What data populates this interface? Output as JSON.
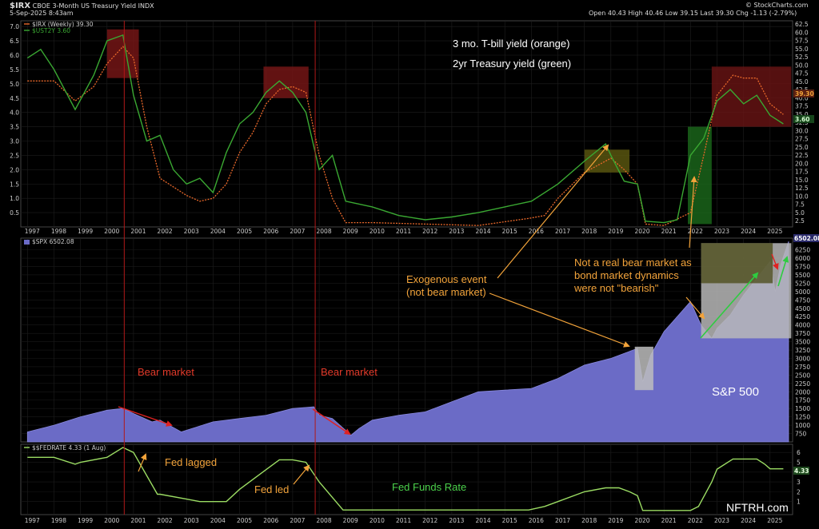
{
  "header": {
    "symbol": "$IRX",
    "name": "CBOE 3-Month US Treasury Yield",
    "exchange": "INDX",
    "date": "5-Sep-2025 8:43am",
    "quote": "Open 40.43  High 40.46  Low 39.15  Last 39.30  Chg -1.13 (-2.79%)",
    "credit": "© StockCharts.com"
  },
  "annotations": {
    "tbill": "3 mo. T-bill yield (orange)",
    "two_year": "2yr Treasury yield (green)",
    "exogenous": "Exogenous event\n(not bear market)",
    "not_real": "Not a real bear market as\nbond market dynamics\nwere not \"bearish\"",
    "bear1": "Bear market",
    "bear2": "Bear market",
    "sp500": "S&P 500",
    "fed_lagged": "Fed lagged",
    "fed_led": "Fed led",
    "fed_funds": "Fed Funds Rate",
    "site": "NFTRH.com"
  },
  "colors": {
    "tbill": "#e8682a",
    "two_year": "#3aa832",
    "spx_fill": "#6b6bc6",
    "fed": "#9bdc63",
    "bear_arrow": "#e02222",
    "bull_arrow": "#2ecc40",
    "orange_arrow": "#f2a33a",
    "marker_line": "#b01818"
  },
  "chart_data": [
    {
      "type": "line",
      "title": "$IRX CBOE 3-Month US Treasury Yield",
      "legend": [
        "$IRX (Weekly) 39.30",
        "$UST2Y 3.60"
      ],
      "left_ticks": [
        "7.0",
        "6.5",
        "6.0",
        "5.5",
        "5.0",
        "4.5",
        "4.0",
        "3.5",
        "3.0",
        "2.5",
        "2.0",
        "1.5",
        "1.0",
        "0.5"
      ],
      "right_ticks": [
        "62.5",
        "60.0",
        "57.5",
        "55.0",
        "52.5",
        "50.0",
        "47.5",
        "45.0",
        "42.5",
        "40.0",
        "37.5",
        "35.0",
        "32.5",
        "30.0",
        "27.5",
        "25.0",
        "22.5",
        "20.0",
        "17.5",
        "15.0",
        "12.5",
        "10.0",
        "7.5",
        "5.0",
        "2.5"
      ],
      "last_labels": [
        "39.30",
        "3.60"
      ],
      "ylim": [
        0,
        7.2
      ],
      "series": [
        {
          "name": "$IRX (Weekly)",
          "x": [
            1997,
            1998,
            1998.8,
            1999.5,
            2000,
            2000.6,
            2001,
            2001.5,
            2002,
            2003,
            2003.5,
            2004,
            2004.5,
            2005,
            2005.5,
            2006,
            2006.5,
            2007,
            2007.5,
            2008,
            2008.5,
            2009,
            2010,
            2012,
            2014,
            2015.9,
            2016.5,
            2017,
            2018,
            2019,
            2019.5,
            2020,
            2020.3,
            2021,
            2022,
            2022.5,
            2023,
            2023.6,
            2024,
            2024.5,
            2025,
            2025.5
          ],
          "values": [
            5.1,
            5.1,
            4.4,
            4.9,
            5.7,
            6.3,
            5.9,
            3.5,
            1.7,
            1.1,
            0.9,
            1.0,
            1.5,
            2.6,
            3.3,
            4.3,
            4.8,
            4.9,
            4.7,
            2.5,
            1.0,
            0.15,
            0.15,
            0.1,
            0.05,
            0.3,
            0.4,
            1.0,
            1.9,
            2.4,
            2.0,
            1.5,
            0.1,
            0.05,
            0.5,
            2.5,
            4.6,
            5.3,
            5.2,
            5.2,
            4.3,
            3.93
          ]
        },
        {
          "name": "$UST2Y",
          "x": [
            1997,
            1997.5,
            1998,
            1998.8,
            1999.5,
            2000,
            2000.6,
            2001,
            2001.5,
            2002,
            2002.5,
            2003,
            2003.5,
            2004,
            2004.5,
            2005,
            2005.5,
            2006,
            2006.5,
            2007,
            2007.5,
            2008,
            2008.5,
            2009,
            2010,
            2011,
            2012,
            2013,
            2014,
            2015,
            2016,
            2017,
            2018,
            2018.8,
            2019,
            2019.5,
            2020,
            2020.3,
            2021,
            2021.5,
            2022,
            2022.5,
            2023,
            2023.5,
            2024,
            2024.5,
            2025,
            2025.5
          ],
          "values": [
            5.9,
            6.2,
            5.5,
            4.1,
            5.3,
            6.5,
            6.7,
            4.6,
            3.0,
            3.2,
            2.0,
            1.5,
            1.7,
            1.2,
            2.6,
            3.6,
            4.0,
            4.7,
            5.1,
            4.7,
            4.0,
            2.0,
            2.5,
            0.9,
            0.7,
            0.4,
            0.25,
            0.35,
            0.5,
            0.7,
            0.9,
            1.5,
            2.3,
            2.9,
            2.5,
            1.6,
            1.5,
            0.2,
            0.15,
            0.25,
            2.5,
            3.1,
            4.4,
            4.8,
            4.3,
            4.6,
            3.9,
            3.6
          ]
        }
      ]
    },
    {
      "type": "area",
      "title": "$SPX 6502.08",
      "legend": [
        "$SPX 6502.08"
      ],
      "last_label": "6502.08",
      "right_ticks": [
        "6250",
        "6000",
        "5750",
        "5500",
        "5250",
        "5000",
        "4750",
        "4500",
        "4250",
        "4000",
        "3750",
        "3500",
        "3250",
        "3000",
        "2750",
        "2500",
        "2250",
        "2000",
        "1750",
        "1500",
        "1250",
        "1000",
        "750"
      ],
      "ylim": [
        500,
        6600
      ],
      "x": [
        1997,
        1998,
        1999,
        2000,
        2000.6,
        2001,
        2001.7,
        2002,
        2002.8,
        2003,
        2004,
        2005,
        2006,
        2007,
        2007.8,
        2008,
        2008.5,
        2009.2,
        2009.5,
        2010,
        2011,
        2012,
        2013,
        2014,
        2015,
        2016,
        2017,
        2018,
        2019,
        2020,
        2020.2,
        2020.5,
        2021,
        2022,
        2022.4,
        2022.8,
        2023,
        2023.5,
        2024,
        2024.5,
        2025,
        2025.2,
        2025.4,
        2025.7
      ],
      "values": [
        800,
        1000,
        1250,
        1450,
        1500,
        1350,
        1100,
        1150,
        800,
        850,
        1100,
        1200,
        1300,
        1500,
        1550,
        1300,
        1200,
        700,
        900,
        1150,
        1300,
        1400,
        1700,
        2000,
        2050,
        2100,
        2400,
        2800,
        3000,
        3300,
        2300,
        3100,
        3800,
        4700,
        4000,
        3600,
        3900,
        4300,
        4900,
        5400,
        5900,
        5000,
        5800,
        6502
      ]
    },
    {
      "type": "line",
      "title": "$$FEDRATE 4.33 (1 Aug)",
      "legend": [
        "$$FEDRATE 4.33 (1 Aug)"
      ],
      "last_label": "4.33",
      "right_ticks": [
        "6",
        "5",
        "4",
        "3",
        "2",
        "1"
      ],
      "ylim": [
        0,
        6.5
      ],
      "x": [
        1997,
        1998,
        1998.8,
        1999,
        2000,
        2000.6,
        2001,
        2001.9,
        2002,
        2003,
        2003.5,
        2004.5,
        2005,
        2006,
        2006.5,
        2007,
        2007.5,
        2008,
        2008.9,
        2015.9,
        2016.5,
        2017,
        2018,
        2018.8,
        2019.3,
        2019.7,
        2020,
        2020.2,
        2022,
        2022.3,
        2022.8,
        2023,
        2023.6,
        2024.5,
        2024.8,
        2025,
        2025.5
      ],
      "values": [
        5.5,
        5.5,
        4.8,
        5.0,
        5.5,
        6.5,
        6.0,
        1.75,
        1.75,
        1.25,
        1.0,
        1.0,
        2.25,
        4.25,
        5.25,
        5.25,
        5.0,
        3.0,
        0.15,
        0.15,
        0.5,
        1.0,
        2.0,
        2.4,
        2.4,
        2.0,
        1.6,
        0.1,
        0.1,
        0.5,
        3.0,
        4.3,
        5.33,
        5.33,
        4.8,
        4.33,
        4.33
      ]
    }
  ],
  "x_axis_years": [
    "1997",
    "1998",
    "1999",
    "2000",
    "2001",
    "2002",
    "2003",
    "2004",
    "2005",
    "2006",
    "2007",
    "2008",
    "2009",
    "2010",
    "2011",
    "2012",
    "2013",
    "2014",
    "2015",
    "2016",
    "2017",
    "2018",
    "2019",
    "2020",
    "2021",
    "2022",
    "2023",
    "2024",
    "2025"
  ]
}
